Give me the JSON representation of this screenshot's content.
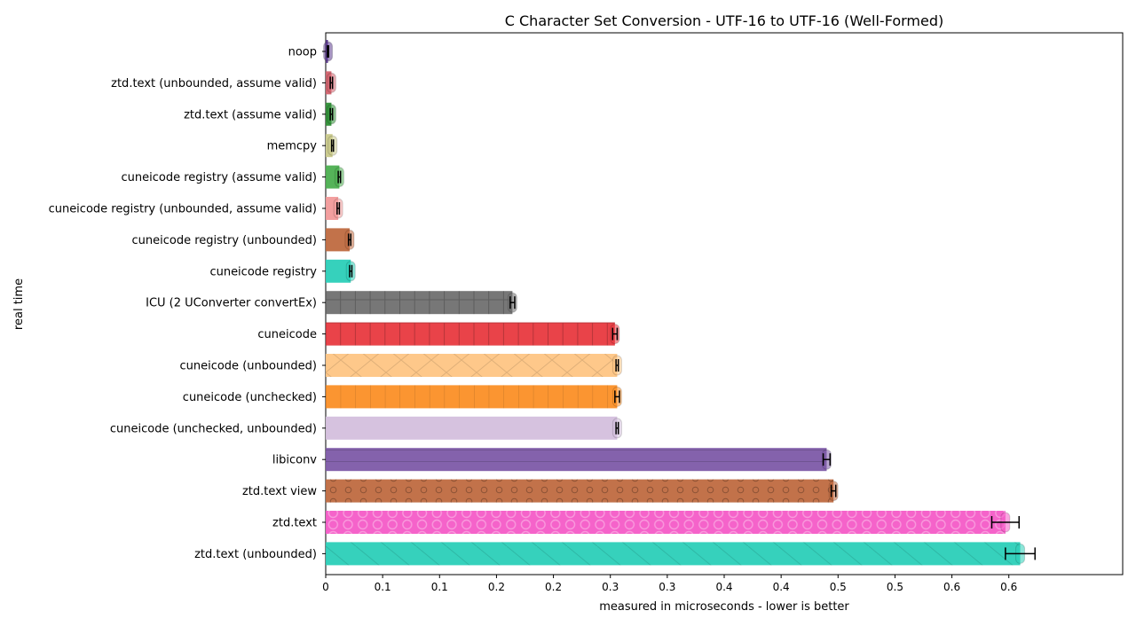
{
  "chart_data": {
    "type": "bar",
    "orientation": "horizontal",
    "title": "C Character Set Conversion - UTF-16 to UTF-16 (Well-Formed)",
    "xlabel": "measured in microseconds - lower is better",
    "ylabel": "real time",
    "xlim": [
      0,
      0.7
    ],
    "xticks": [
      "0",
      "0.1",
      "0.1",
      "0.2",
      "0.2",
      "0.3",
      "0.3",
      "0.4",
      "0.4",
      "0.5",
      "0.5",
      "0.6",
      "0.6"
    ],
    "xtick_values": [
      0,
      0.05,
      0.1,
      0.15,
      0.2,
      0.25,
      0.3,
      0.35,
      0.4,
      0.45,
      0.5,
      0.55,
      0.6
    ],
    "grid": false,
    "bars": [
      {
        "label": "noop",
        "value": 0.002,
        "err": 0.0005,
        "color": "#5b3a8c",
        "hatch": "none"
      },
      {
        "label": "ztd.text (unbounded, assume valid)",
        "value": 0.005,
        "err": 0.001,
        "color": "#d1616b",
        "hatch": "none"
      },
      {
        "label": "ztd.text (assume valid)",
        "value": 0.005,
        "err": 0.001,
        "color": "#2f8f36",
        "hatch": "none"
      },
      {
        "label": "memcpy",
        "value": 0.006,
        "err": 0.0008,
        "color": "#c9c98a",
        "hatch": "none"
      },
      {
        "label": "cuneicode registry (assume valid)",
        "value": 0.012,
        "err": 0.001,
        "color": "#4caf50",
        "hatch": "none"
      },
      {
        "label": "cuneicode registry (unbounded, assume valid)",
        "value": 0.011,
        "err": 0.001,
        "color": "#f29a9a",
        "hatch": "none"
      },
      {
        "label": "cuneicode registry (unbounded)",
        "value": 0.021,
        "err": 0.001,
        "color": "#bf6a40",
        "hatch": "none"
      },
      {
        "label": "cuneicode registry",
        "value": 0.022,
        "err": 0.001,
        "color": "#2bcfb8",
        "hatch": "none"
      },
      {
        "label": "ICU (2 UConverter convertEx)",
        "value": 0.164,
        "err": 0.002,
        "color": "#707070",
        "hatch": "grid"
      },
      {
        "label": "cuneicode",
        "value": 0.254,
        "err": 0.002,
        "color": "#e8393f",
        "hatch": "grid"
      },
      {
        "label": "cuneicode (unbounded)",
        "value": 0.256,
        "err": 0.001,
        "color": "#fec584",
        "hatch": "cross"
      },
      {
        "label": "cuneicode (unchecked)",
        "value": 0.256,
        "err": 0.002,
        "color": "#fb8f26",
        "hatch": "vlines"
      },
      {
        "label": "cuneicode (unchecked, unbounded)",
        "value": 0.256,
        "err": 0.001,
        "color": "#d4bfdd",
        "hatch": "none"
      },
      {
        "label": "libiconv",
        "value": 0.44,
        "err": 0.003,
        "color": "#7d5aa8",
        "hatch": "hline"
      },
      {
        "label": "ztd.text view",
        "value": 0.446,
        "err": 0.002,
        "color": "#bf6a40",
        "hatch": "circles"
      },
      {
        "label": "ztd.text",
        "value": 0.597,
        "err": 0.012,
        "color": "#f45bc7",
        "hatch": "bigcircles"
      },
      {
        "label": "ztd.text (unbounded)",
        "value": 0.61,
        "err": 0.013,
        "color": "#2bcfb8",
        "hatch": "diag"
      }
    ]
  }
}
